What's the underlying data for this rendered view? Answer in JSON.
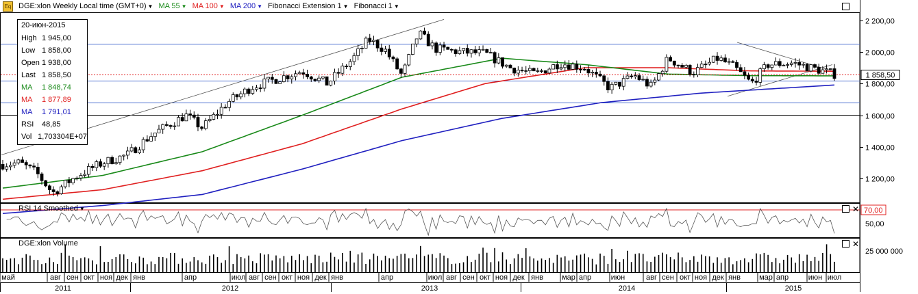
{
  "header": {
    "symbol_label": "DGE:xlon Weekly Local time (GMT+0)",
    "ma1_label": "MA 55",
    "ma2_label": "MA 100",
    "ma3_label": "MA 200",
    "fib_ext_label": "Fibonacci Extension 1",
    "fib_label": "Fibonacci 1",
    "icon": "eq-icon"
  },
  "info": {
    "date": "20-июн-2015",
    "rows": [
      {
        "k": "High",
        "v": "1 945,00",
        "color": "#000000"
      },
      {
        "k": "Low",
        "v": "1 858,00",
        "color": "#000000"
      },
      {
        "k": "Open",
        "v": "1 938,00",
        "color": "#000000"
      },
      {
        "k": "Last",
        "v": "1 858,50",
        "color": "#000000"
      },
      {
        "k": "MA",
        "v": "1 848,74",
        "color": "#1a8a1a"
      },
      {
        "k": "MA",
        "v": "1 877,89",
        "color": "#e02020"
      },
      {
        "k": "MA",
        "v": "1 791,01",
        "color": "#2020c0"
      },
      {
        "k": "RSI",
        "v": "48,85",
        "color": "#000000"
      },
      {
        "k": "Vol",
        "v": "1,703304E+07",
        "color": "#000000"
      }
    ]
  },
  "rsi_panel": {
    "title": "RSI 14 Smoothed",
    "level_label": "70,00",
    "mid_label": "50,00"
  },
  "volume_panel": {
    "title": "DGE:xlon Volume",
    "tick_label": "25 000 000"
  },
  "last_price_label": "1 858,50",
  "colors": {
    "ma55": "#1a8a1a",
    "ma100": "#e02020",
    "ma200": "#2020c0",
    "candle": "#000000"
  },
  "chart_data": {
    "type": "candlestick",
    "interval": "weekly",
    "price_axis": {
      "range": [
        1050,
        2250
      ],
      "ticks": [
        "1 200,00",
        "1 400,00",
        "1 600,00",
        "1 800,00",
        "2 000,00",
        "2 200,00"
      ]
    },
    "horizontal_levels": [
      1602,
      1682,
      1820,
      2050
    ],
    "last_price": 1858.5,
    "months": [
      "май",
      "авг",
      "сен",
      "окт",
      "ноя",
      "дек",
      "янв",
      "апр",
      "июл",
      "авг",
      "сен",
      "окт",
      "ноя",
      "дек",
      "янв",
      "апр",
      "июл",
      "авг",
      "сен",
      "окт",
      "ноя",
      "дек",
      "янв",
      "мар",
      "апр",
      "июн",
      "авг",
      "сен",
      "окт",
      "ноя",
      "дек",
      "янв",
      "мар",
      "апр",
      "июн",
      "июл"
    ],
    "years": [
      "2011",
      "2012",
      "2013",
      "2014",
      "2015"
    ],
    "price_path": [
      {
        "t": 0,
        "p": 1290
      },
      {
        "t": 0.02,
        "p": 1300
      },
      {
        "t": 0.04,
        "p": 1240
      },
      {
        "t": 0.06,
        "p": 1110
      },
      {
        "t": 0.09,
        "p": 1220
      },
      {
        "t": 0.12,
        "p": 1300
      },
      {
        "t": 0.15,
        "p": 1350
      },
      {
        "t": 0.18,
        "p": 1480
      },
      {
        "t": 0.22,
        "p": 1600
      },
      {
        "t": 0.24,
        "p": 1520
      },
      {
        "t": 0.27,
        "p": 1680
      },
      {
        "t": 0.3,
        "p": 1780
      },
      {
        "t": 0.33,
        "p": 1830
      },
      {
        "t": 0.36,
        "p": 1880
      },
      {
        "t": 0.39,
        "p": 1800
      },
      {
        "t": 0.42,
        "p": 1950
      },
      {
        "t": 0.44,
        "p": 2080
      },
      {
        "t": 0.46,
        "p": 2010
      },
      {
        "t": 0.48,
        "p": 1850
      },
      {
        "t": 0.5,
        "p": 2120
      },
      {
        "t": 0.52,
        "p": 2020
      },
      {
        "t": 0.55,
        "p": 2000
      },
      {
        "t": 0.58,
        "p": 1990
      },
      {
        "t": 0.61,
        "p": 1900
      },
      {
        "t": 0.64,
        "p": 1860
      },
      {
        "t": 0.67,
        "p": 1930
      },
      {
        "t": 0.7,
        "p": 1900
      },
      {
        "t": 0.73,
        "p": 1770
      },
      {
        "t": 0.76,
        "p": 1850
      },
      {
        "t": 0.78,
        "p": 1780
      },
      {
        "t": 0.8,
        "p": 1960
      },
      {
        "t": 0.83,
        "p": 1870
      },
      {
        "t": 0.86,
        "p": 1960
      },
      {
        "t": 0.88,
        "p": 1900
      },
      {
        "t": 0.9,
        "p": 1800
      },
      {
        "t": 0.92,
        "p": 1920
      },
      {
        "t": 0.95,
        "p": 1930
      },
      {
        "t": 1.0,
        "p": 1860
      }
    ],
    "ma55_path": [
      {
        "t": 0,
        "p": 1140
      },
      {
        "t": 0.12,
        "p": 1220
      },
      {
        "t": 0.24,
        "p": 1370
      },
      {
        "t": 0.36,
        "p": 1600
      },
      {
        "t": 0.48,
        "p": 1840
      },
      {
        "t": 0.6,
        "p": 1960
      },
      {
        "t": 0.7,
        "p": 1920
      },
      {
        "t": 0.8,
        "p": 1860
      },
      {
        "t": 0.9,
        "p": 1850
      },
      {
        "t": 1.0,
        "p": 1849
      }
    ],
    "ma100_path": [
      {
        "t": 0,
        "p": 1070
      },
      {
        "t": 0.12,
        "p": 1130
      },
      {
        "t": 0.24,
        "p": 1250
      },
      {
        "t": 0.36,
        "p": 1420
      },
      {
        "t": 0.48,
        "p": 1640
      },
      {
        "t": 0.58,
        "p": 1800
      },
      {
        "t": 0.7,
        "p": 1900
      },
      {
        "t": 0.8,
        "p": 1900
      },
      {
        "t": 0.9,
        "p": 1880
      },
      {
        "t": 1.0,
        "p": 1878
      }
    ],
    "ma200_path": [
      {
        "t": 0,
        "p": 980
      },
      {
        "t": 0.12,
        "p": 1030
      },
      {
        "t": 0.24,
        "p": 1100
      },
      {
        "t": 0.36,
        "p": 1260
      },
      {
        "t": 0.48,
        "p": 1440
      },
      {
        "t": 0.6,
        "p": 1580
      },
      {
        "t": 0.72,
        "p": 1680
      },
      {
        "t": 0.84,
        "p": 1740
      },
      {
        "t": 1.0,
        "p": 1791
      }
    ],
    "rsi_panel": {
      "range": [
        30,
        80
      ],
      "levels": [
        50,
        70
      ]
    },
    "volume_panel": {
      "range": [
        0,
        40000000
      ]
    }
  }
}
